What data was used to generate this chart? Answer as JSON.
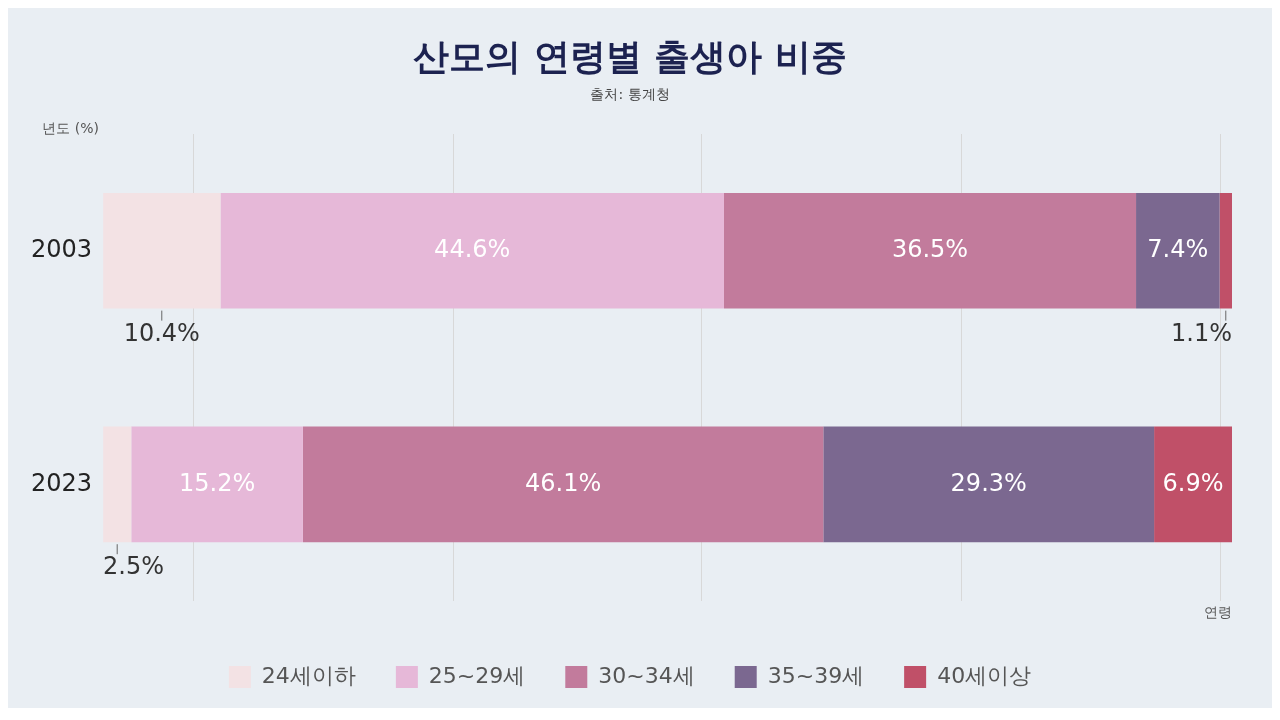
{
  "chart_data": {
    "type": "bar",
    "orientation": "horizontal",
    "stacked": true,
    "title": "산모의 연령별 출생아 비중",
    "subtitle": "출처: 통계청",
    "ylabel": "년도 (%)",
    "xlabel": "연령",
    "categories": [
      "2003",
      "2023"
    ],
    "xlim": [
      0,
      100
    ],
    "xticks": [
      {
        "value": 8,
        "label": null
      },
      {
        "value": 31,
        "label": null
      },
      {
        "value": 53,
        "label": null
      },
      {
        "value": 76,
        "label": null
      },
      {
        "value": 99,
        "label": null
      }
    ],
    "tick_labels": "y",
    "grid": "x",
    "legend": "bottom",
    "series": [
      {
        "name": "24세이하",
        "color": "#f3e2e4",
        "values": [
          10.4,
          2.5
        ],
        "value_labels": [
          "10.4%",
          "2.5%"
        ]
      },
      {
        "name": "25~29세",
        "color": "#e6b8d8",
        "values": [
          44.6,
          15.2
        ],
        "value_labels": [
          "44.6%",
          "15.2%"
        ]
      },
      {
        "name": "30~34세",
        "color": "#c27b9c",
        "values": [
          36.5,
          46.1
        ],
        "value_labels": [
          "36.5%",
          "46.1%"
        ]
      },
      {
        "name": "35~39세",
        "color": "#7b6890",
        "values": [
          7.4,
          29.3
        ],
        "value_labels": [
          "7.4%",
          "29.3%"
        ]
      },
      {
        "name": "40세이상",
        "color": "#c05068",
        "values": [
          1.1,
          6.9
        ],
        "value_labels": [
          "1.1%",
          "6.9%"
        ]
      }
    ]
  }
}
